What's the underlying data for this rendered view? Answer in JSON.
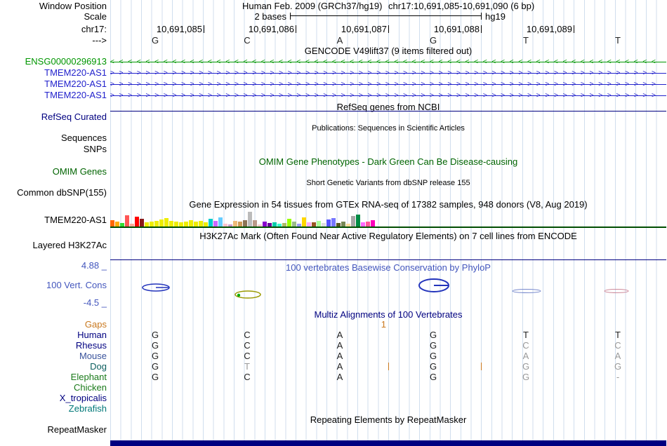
{
  "colors": {
    "navy": "#000080",
    "omim_green": "#006400",
    "cons_blue": "#4356bd",
    "orange": "#c9781e",
    "gray_base": "#999999",
    "gridline": "#d0deee",
    "gtex_baseline": "#004d00"
  },
  "header": {
    "assembly": "Human Feb. 2009 (GRCh37/hg19)",
    "position": "chr17:10,691,085-10,691,090 (6 bp)",
    "scale_value": "2 bases",
    "scale_assembly": "hg19",
    "ruler": [
      "10,691,085",
      "10,691,086",
      "10,691,087",
      "10,691,088",
      "10,691,089"
    ],
    "bases": [
      "G",
      "C",
      "A",
      "G",
      "T",
      "T"
    ]
  },
  "gutter": {
    "window_position": "Window Position",
    "scale": "Scale",
    "chrom": "chr17:",
    "direction": "--->"
  },
  "tracks": {
    "gencode": {
      "title": "GENCODE V49lift37 (9 items filtered out)",
      "items": [
        {
          "label": "ENSG00000296913",
          "arrow": "<",
          "color": "#009600"
        },
        {
          "label": "TMEM220-AS1",
          "arrow": ">",
          "color": "#2222cc"
        },
        {
          "label": "TMEM220-AS1",
          "arrow": ">",
          "color": "#2222cc"
        },
        {
          "label": "TMEM220-AS1",
          "arrow": ">",
          "color": "#2222cc"
        }
      ]
    },
    "refseq": {
      "title": "RefSeq genes from NCBI",
      "label": "RefSeq Curated"
    },
    "publications": {
      "title": "Publications: Sequences in Scientific Articles",
      "label": "Sequences"
    },
    "snps": {
      "label": "SNPs"
    },
    "omim": {
      "title": "OMIM Gene Phenotypes - Dark Green Can Be Disease-causing",
      "label": "OMIM Genes"
    },
    "dbsnp": {
      "title": "Short Genetic Variants from dbSNP release 155",
      "label": "Common dbSNP(155)"
    },
    "gtex": {
      "title": "Gene Expression in 54 tissues from GTEx RNA-seq of 17382 samples, 948 donors (V8, Aug 2019)",
      "label": "TMEM220-AS1",
      "bars": [
        [
          9,
          "#FF6600"
        ],
        [
          7,
          "#FFAA00"
        ],
        [
          5,
          "#33DD33"
        ],
        [
          16,
          "#FF5555"
        ],
        [
          4,
          "#FFAA99"
        ],
        [
          14,
          "#FF0000"
        ],
        [
          11,
          "#8B1A1A"
        ],
        [
          6,
          "#EEEE00"
        ],
        [
          7,
          "#EEEE00"
        ],
        [
          8,
          "#EEEE00"
        ],
        [
          10,
          "#EEEE00"
        ],
        [
          12,
          "#EEEE00"
        ],
        [
          8,
          "#EEEE00"
        ],
        [
          7,
          "#EEEE00"
        ],
        [
          6,
          "#EEEE00"
        ],
        [
          7,
          "#EEEE00"
        ],
        [
          9,
          "#EEEE00"
        ],
        [
          7,
          "#EEEE00"
        ],
        [
          8,
          "#EEEE00"
        ],
        [
          6,
          "#EEEE00"
        ],
        [
          11,
          "#00CDCD"
        ],
        [
          8,
          "#CC66FF"
        ],
        [
          13,
          "#66CCFF"
        ],
        [
          4,
          "#FFC0CB"
        ],
        [
          3,
          "#CC99CC"
        ],
        [
          8,
          "#EEBB77"
        ],
        [
          7,
          "#CC9955"
        ],
        [
          9,
          "#8B7355"
        ],
        [
          21,
          "#BBBBBB"
        ],
        [
          9,
          "#BB9988"
        ],
        [
          3,
          "#FFCCCC"
        ],
        [
          7,
          "#8800CC"
        ],
        [
          5,
          "#660099"
        ],
        [
          6,
          "#00CDAA"
        ],
        [
          4,
          "#33FFCC"
        ],
        [
          5,
          "#AABB66"
        ],
        [
          11,
          "#99FF00"
        ],
        [
          7,
          "#99BB88"
        ],
        [
          4,
          "#9999FF"
        ],
        [
          13,
          "#FFD700"
        ],
        [
          6,
          "#FFAAFF"
        ],
        [
          6,
          "#995522"
        ],
        [
          8,
          "#AAFF99"
        ],
        [
          5,
          "#DDDDDD"
        ],
        [
          10,
          "#5555FF"
        ],
        [
          12,
          "#7777FF"
        ],
        [
          5,
          "#555522"
        ],
        [
          7,
          "#778855"
        ],
        [
          4,
          "#FFDD99"
        ],
        [
          15,
          "#A6A6A6"
        ],
        [
          17,
          "#008B45"
        ],
        [
          6,
          "#FF66FF"
        ],
        [
          7,
          "#FF5599"
        ],
        [
          9,
          "#FF00BB"
        ]
      ]
    },
    "h3k27ac": {
      "title": "H3K27Ac Mark (Often Found Near Active Regulatory Elements) on 7 cell lines from ENCODE",
      "label": "Layered H3K27Ac"
    },
    "conservation": {
      "title": "100 vertebrates Basewise Conservation by PhyloP",
      "label": "100 Vert. Cons",
      "max": "4.88 _",
      "min": "-4.5 _"
    },
    "multiz": {
      "title": "Multiz Alignments of 100 Vertebrates",
      "gaps_label": "Gaps",
      "gaps_value": "1",
      "species": [
        {
          "name": "Human",
          "color": "#000080",
          "bases": [
            "G",
            "C",
            "A",
            "G",
            "T",
            "T"
          ],
          "gray": [
            0,
            0,
            0,
            0,
            0,
            0
          ]
        },
        {
          "name": "Rhesus",
          "color": "#000080",
          "bases": [
            "G",
            "C",
            "A",
            "G",
            "C",
            "C"
          ],
          "gray": [
            0,
            0,
            0,
            0,
            1,
            1
          ]
        },
        {
          "name": "Mouse",
          "color": "#39529b",
          "bases": [
            "G",
            "C",
            "A",
            "G",
            "A",
            "A"
          ],
          "gray": [
            0,
            0,
            0,
            0,
            1,
            1
          ]
        },
        {
          "name": "Dog",
          "color": "#0b5e5e",
          "bases": [
            "G",
            "T",
            "A",
            "G",
            "G",
            "G"
          ],
          "gray": [
            0,
            1,
            0,
            0,
            1,
            1
          ],
          "inserts": [
            2,
            3
          ]
        },
        {
          "name": "Elephant",
          "color": "#1a7a1a",
          "bases": [
            "G",
            "C",
            "A",
            "G",
            "G",
            "-"
          ],
          "gray": [
            0,
            0,
            0,
            0,
            1,
            1
          ]
        },
        {
          "name": "Chicken",
          "color": "#1a7a1a",
          "bases": [
            "",
            "",
            "",
            "",
            "",
            ""
          ],
          "gray": [
            0,
            0,
            0,
            0,
            0,
            0
          ]
        },
        {
          "name": "X_tropicalis",
          "color": "#000080",
          "bases": [
            "",
            "",
            "",
            "",
            "",
            ""
          ],
          "gray": [
            0,
            0,
            0,
            0,
            0,
            0
          ]
        },
        {
          "name": "Zebrafish",
          "color": "#007878",
          "bases": [
            "",
            "",
            "",
            "",
            "",
            ""
          ],
          "gray": [
            0,
            0,
            0,
            0,
            0,
            0
          ]
        }
      ]
    },
    "repeatmasker": {
      "title": "Repeating Elements by RepeatMasker",
      "label": "RepeatMasker"
    }
  }
}
